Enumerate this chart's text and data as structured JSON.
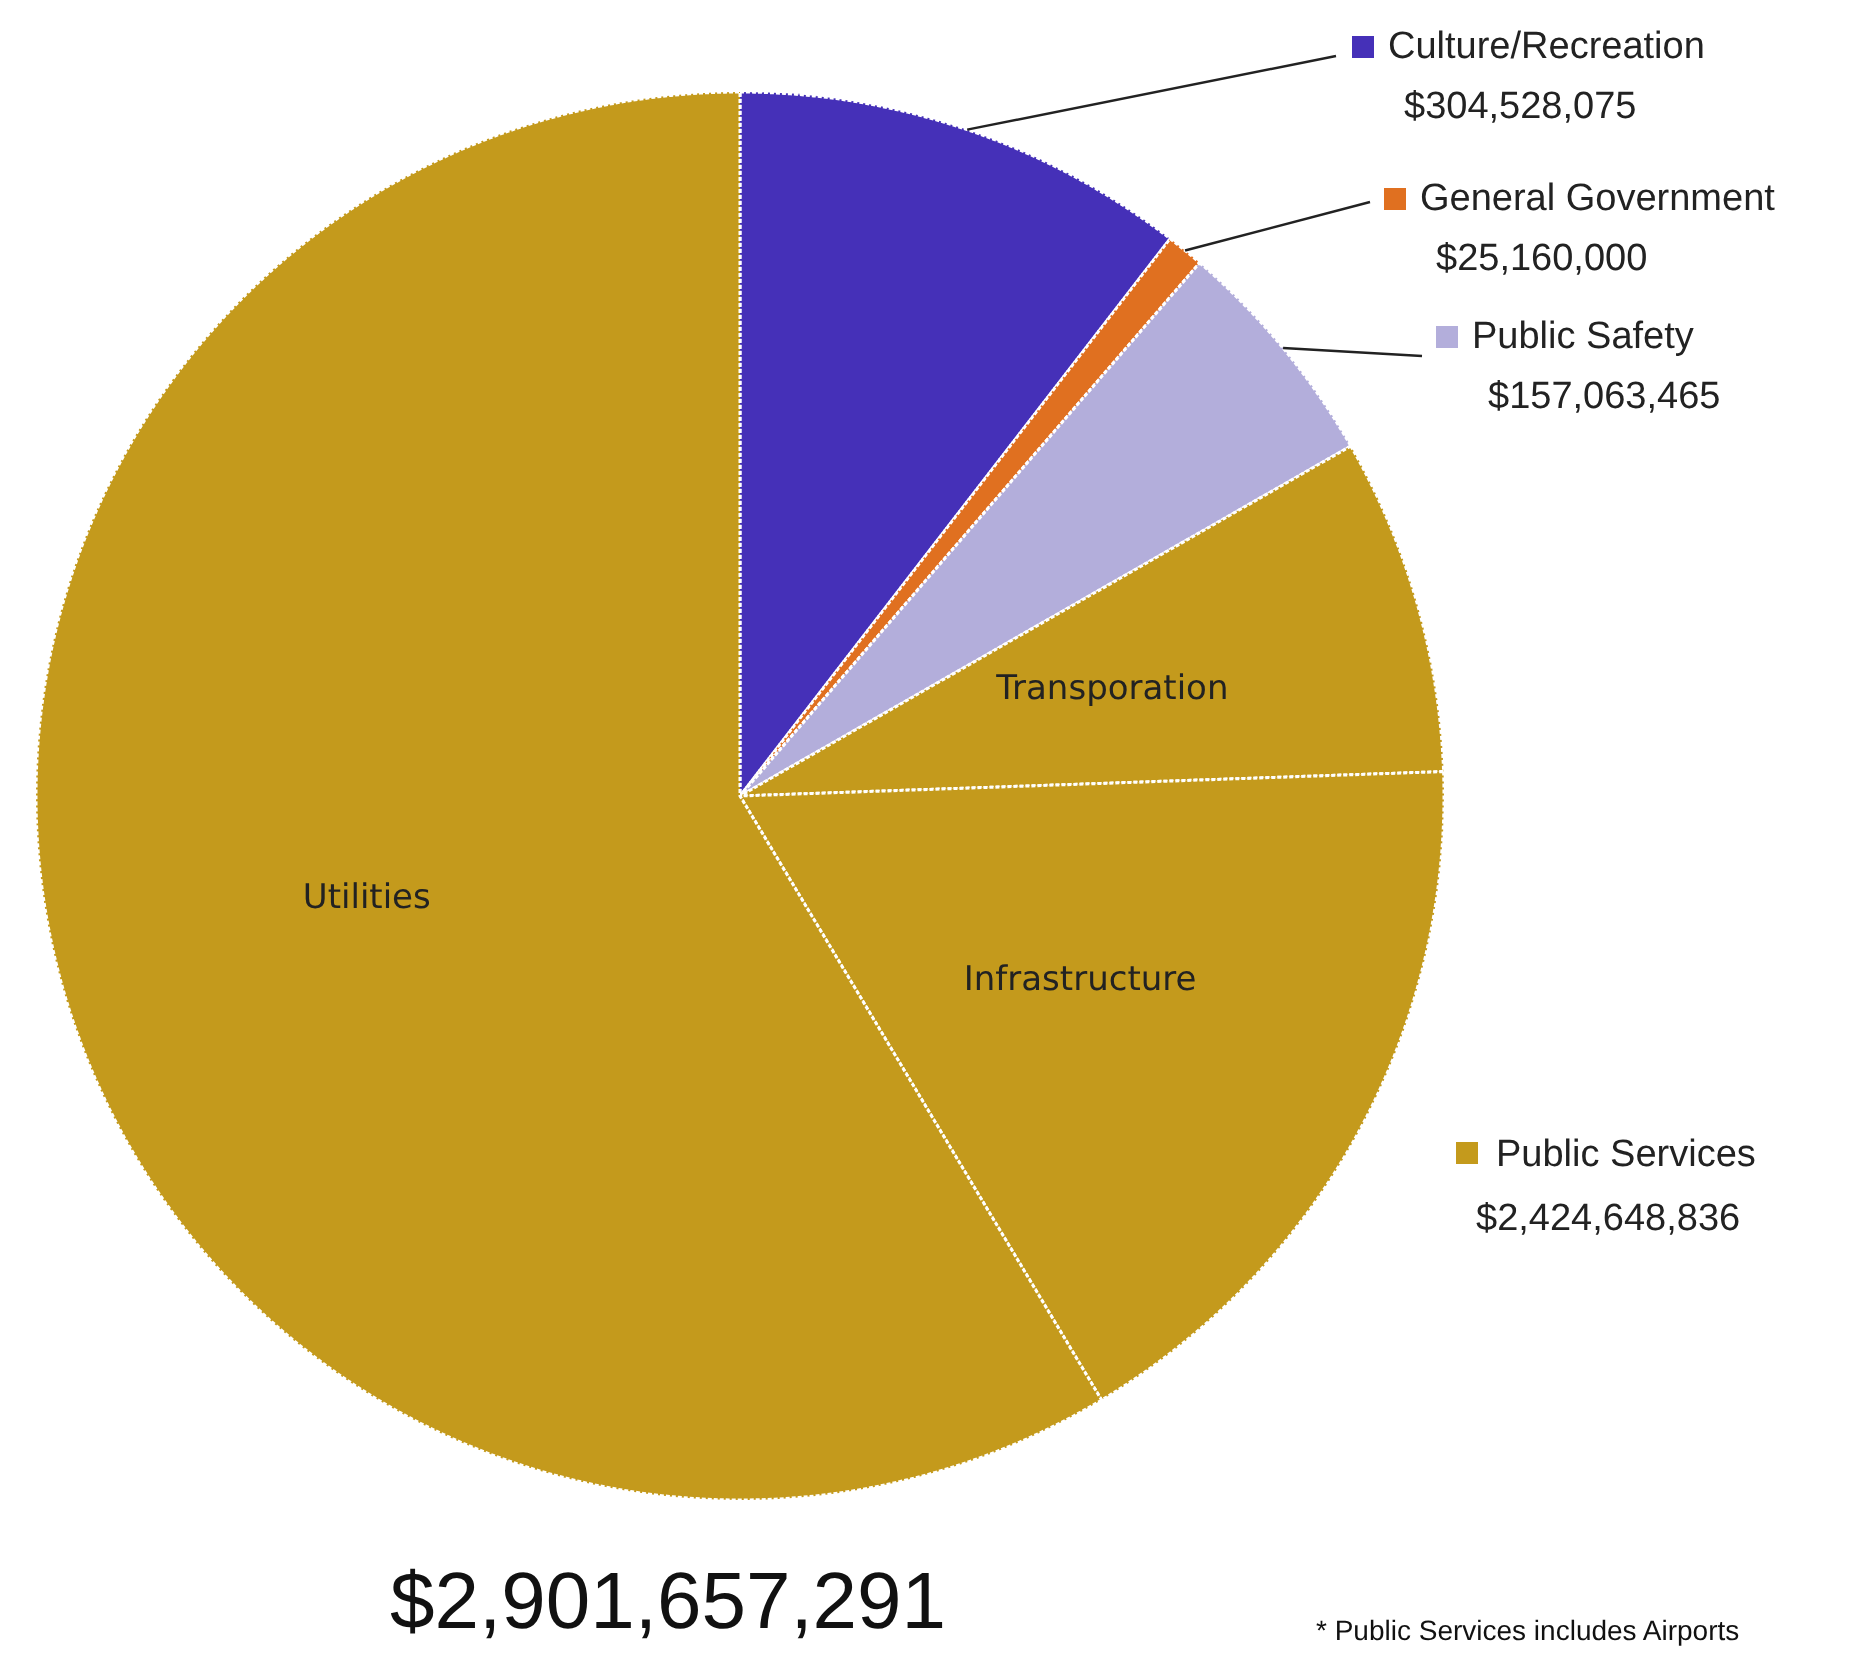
{
  "chart_data": {
    "type": "pie",
    "categories": [
      "Culture/Recreation",
      "General Government",
      "Public Safety",
      "Transporation",
      "Infrastructure",
      "Utilities"
    ],
    "values": [
      304528075,
      25160000,
      157063465,
      225000000,
      494000000,
      1705600000
    ],
    "value_labels": [
      "$304,528,075",
      "$25,160,000",
      "$157,063,465",
      null,
      null,
      null
    ],
    "colors": [
      "#4530b8",
      "#e07020",
      "#b3aedb",
      "#c49a1c",
      "#c49a1c",
      "#c49a1c"
    ],
    "legend": "right",
    "annotations": [
      "Public Services",
      "$2,424,648,836",
      "$2,901,657,291",
      "* Public Services includes Airports"
    ]
  }
}
